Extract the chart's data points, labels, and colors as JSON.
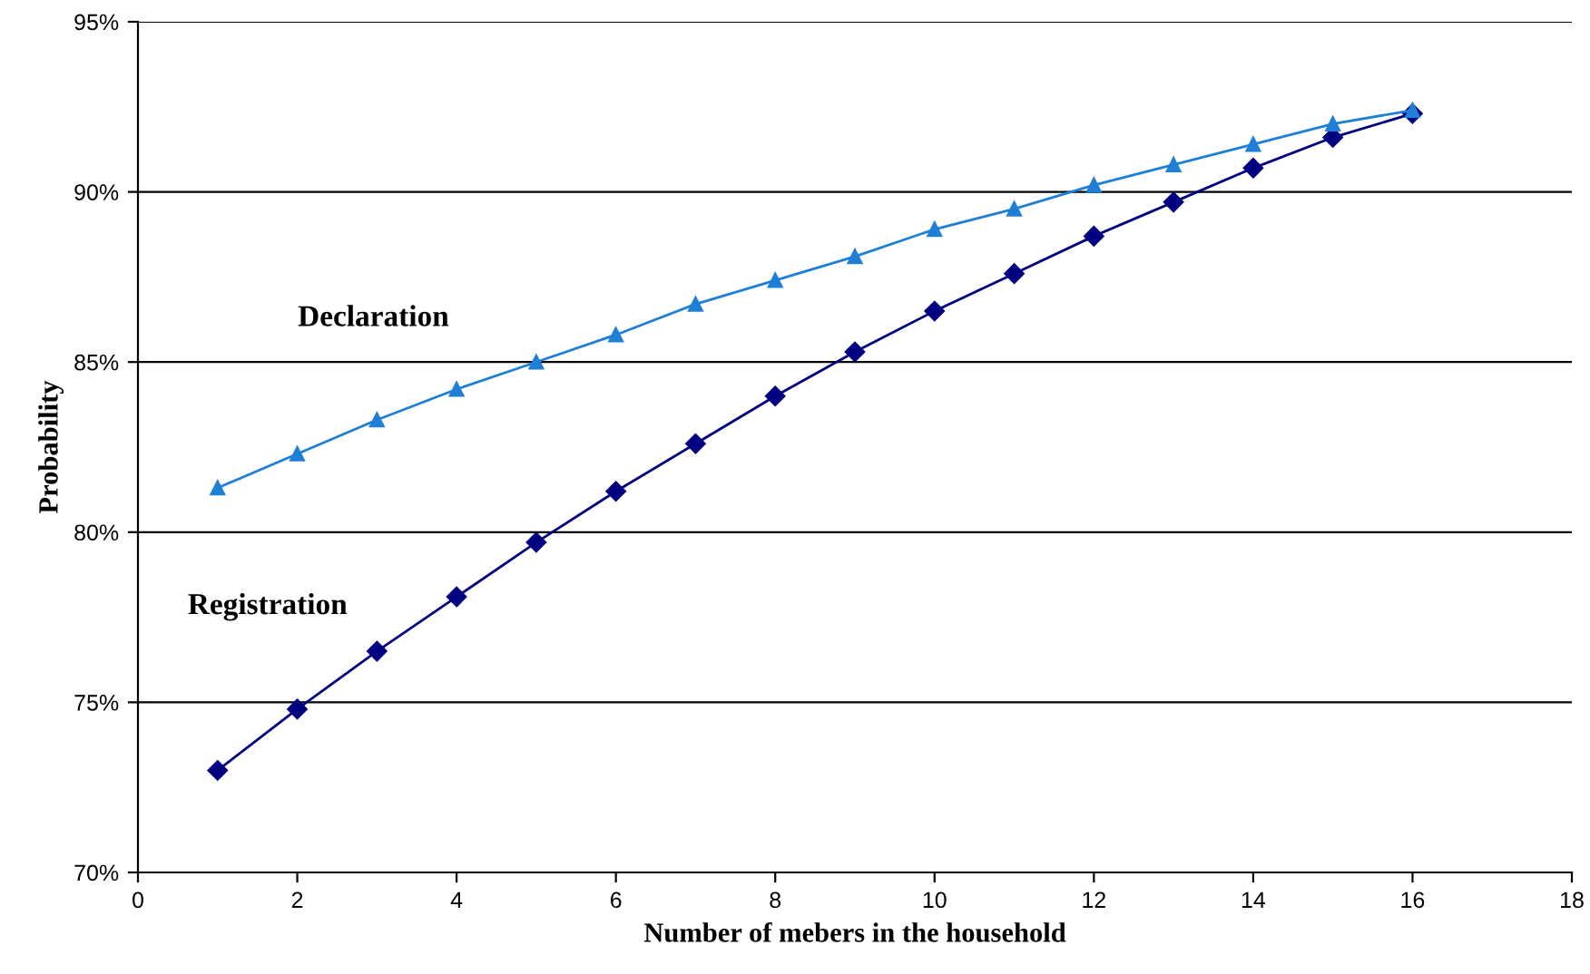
{
  "chart_data": {
    "type": "line",
    "xlabel": "Number of mebers in the household",
    "ylabel": "Probability",
    "x": [
      1,
      2,
      3,
      4,
      5,
      6,
      7,
      8,
      9,
      10,
      11,
      12,
      13,
      14,
      15,
      16
    ],
    "series": [
      {
        "name": "Declaration",
        "color": "#1f7fd6",
        "marker": "triangle",
        "values": [
          81.3,
          82.3,
          83.3,
          84.2,
          85.0,
          85.8,
          86.7,
          87.4,
          88.1,
          88.9,
          89.5,
          90.2,
          90.8,
          91.4,
          92.0,
          92.4
        ]
      },
      {
        "name": "Registration",
        "color": "#000080",
        "marker": "diamond",
        "values": [
          73.0,
          74.8,
          76.5,
          78.1,
          79.7,
          81.2,
          82.6,
          84.0,
          85.3,
          86.5,
          87.6,
          88.7,
          89.7,
          90.7,
          91.6,
          92.3
        ]
      }
    ],
    "xlim": [
      0,
      18
    ],
    "xticks": [
      0,
      2,
      4,
      6,
      8,
      10,
      12,
      14,
      16,
      18
    ],
    "ylim": [
      70,
      95
    ],
    "yticks": [
      {
        "value": 70,
        "label": "70%"
      },
      {
        "value": 75,
        "label": "75%"
      },
      {
        "value": 80,
        "label": "80%"
      },
      {
        "value": 85,
        "label": "85%"
      },
      {
        "value": 90,
        "label": "90%"
      },
      {
        "value": 95,
        "label": "95%"
      }
    ],
    "grid": "y",
    "legend": false,
    "line_style": "solid"
  }
}
